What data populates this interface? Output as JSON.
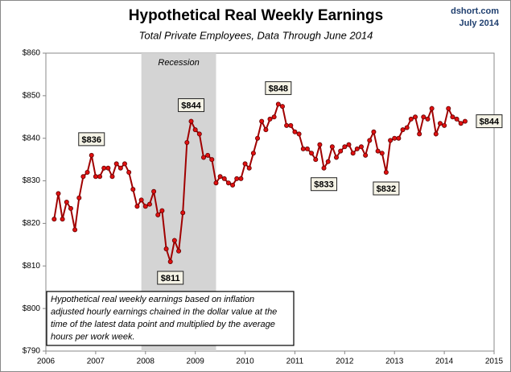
{
  "chart_data": {
    "type": "line",
    "title": "Hypothetical Real Weekly Earnings",
    "subtitle": "Total Private Employees, Data Through June 2014",
    "source": "dshort.com",
    "date": "July 2014",
    "note": [
      "Hypothetical real weekly earnings  based on inflation",
      "adjusted hourly earnings chained in the dollar value at the",
      "time of the latest data point and multiplied by the average",
      "hours per work week."
    ],
    "recession": {
      "label": "Recession",
      "start": 2007.917,
      "end": 2009.417
    },
    "xlim": [
      2006,
      2015
    ],
    "xticks": [
      2006,
      2007,
      2008,
      2009,
      2010,
      2011,
      2012,
      2013,
      2014,
      2015
    ],
    "ylim": [
      790,
      860
    ],
    "yticks": [
      {
        "value": 790,
        "label": "$790"
      },
      {
        "value": 800,
        "label": "$800"
      },
      {
        "value": 810,
        "label": "$810"
      },
      {
        "value": 820,
        "label": "$820"
      },
      {
        "value": 830,
        "label": "$830"
      },
      {
        "value": 840,
        "label": "$840"
      },
      {
        "value": 850,
        "label": "$850"
      },
      {
        "value": 860,
        "label": "$860"
      }
    ],
    "grid": false,
    "series": [
      {
        "color": "#a00000",
        "x": [
          2006.167,
          2006.25,
          2006.333,
          2006.417,
          2006.5,
          2006.583,
          2006.667,
          2006.75,
          2006.833,
          2006.917,
          2007.0,
          2007.083,
          2007.167,
          2007.25,
          2007.333,
          2007.417,
          2007.5,
          2007.583,
          2007.667,
          2007.75,
          2007.833,
          2007.917,
          2008.0,
          2008.083,
          2008.167,
          2008.25,
          2008.333,
          2008.417,
          2008.5,
          2008.583,
          2008.667,
          2008.75,
          2008.833,
          2008.917,
          2009.0,
          2009.083,
          2009.167,
          2009.25,
          2009.333,
          2009.417,
          2009.5,
          2009.583,
          2009.667,
          2009.75,
          2009.833,
          2009.917,
          2010.0,
          2010.083,
          2010.167,
          2010.25,
          2010.333,
          2010.417,
          2010.5,
          2010.583,
          2010.667,
          2010.75,
          2010.833,
          2010.917,
          2011.0,
          2011.083,
          2011.167,
          2011.25,
          2011.333,
          2011.417,
          2011.5,
          2011.583,
          2011.667,
          2011.75,
          2011.833,
          2011.917,
          2012.0,
          2012.083,
          2012.167,
          2012.25,
          2012.333,
          2012.417,
          2012.5,
          2012.583,
          2012.667,
          2012.75,
          2012.833,
          2012.917,
          2013.0,
          2013.083,
          2013.167,
          2013.25,
          2013.333,
          2013.417,
          2013.5,
          2013.583,
          2013.667,
          2013.75,
          2013.833,
          2013.917,
          2014.0,
          2014.083,
          2014.167,
          2014.25,
          2014.333,
          2014.417
        ],
        "values": [
          821,
          827,
          821,
          825,
          823.5,
          818.5,
          826,
          831,
          832,
          836,
          831,
          831,
          833,
          833,
          831,
          834,
          833,
          834,
          832,
          828,
          824,
          825.5,
          824,
          824.5,
          827.5,
          822,
          823,
          814,
          811,
          816,
          813.5,
          822.5,
          839,
          844,
          842,
          841,
          835.5,
          836,
          835,
          829.5,
          831,
          830.5,
          829.5,
          829,
          830.5,
          830.5,
          834,
          833,
          836.5,
          840,
          844,
          842,
          844.5,
          845,
          848,
          847.5,
          843,
          843,
          841.5,
          841,
          837.5,
          837.5,
          836.5,
          835,
          838.5,
          833,
          834.5,
          838,
          835.5,
          837,
          838,
          838.5,
          836.5,
          837.5,
          838,
          836,
          839.5,
          841.5,
          837,
          836.5,
          832,
          839.5,
          840,
          840,
          842,
          842.5,
          844.5,
          845,
          841,
          845,
          844.5,
          847,
          841,
          843.5,
          843,
          847,
          845,
          844.5,
          843.5,
          844
        ],
        "value_labels": [
          null,
          null,
          null,
          null,
          null,
          null,
          null,
          null,
          null,
          "$836",
          null,
          null,
          null,
          null,
          null,
          null,
          null,
          null,
          null,
          null,
          null,
          null,
          null,
          null,
          null,
          null,
          null,
          null,
          "$811",
          null,
          null,
          null,
          null,
          "$844",
          null,
          null,
          null,
          null,
          null,
          null,
          null,
          null,
          null,
          null,
          null,
          null,
          null,
          null,
          null,
          null,
          null,
          null,
          null,
          null,
          "$848",
          null,
          null,
          null,
          null,
          null,
          null,
          null,
          null,
          null,
          null,
          "$833",
          null,
          null,
          null,
          null,
          null,
          null,
          null,
          null,
          null,
          null,
          null,
          null,
          null,
          null,
          "$832",
          null,
          null,
          null,
          null,
          null,
          null,
          null,
          null,
          null,
          null,
          null,
          null,
          null,
          null,
          null,
          null,
          null,
          null,
          "$844"
        ]
      }
    ]
  }
}
